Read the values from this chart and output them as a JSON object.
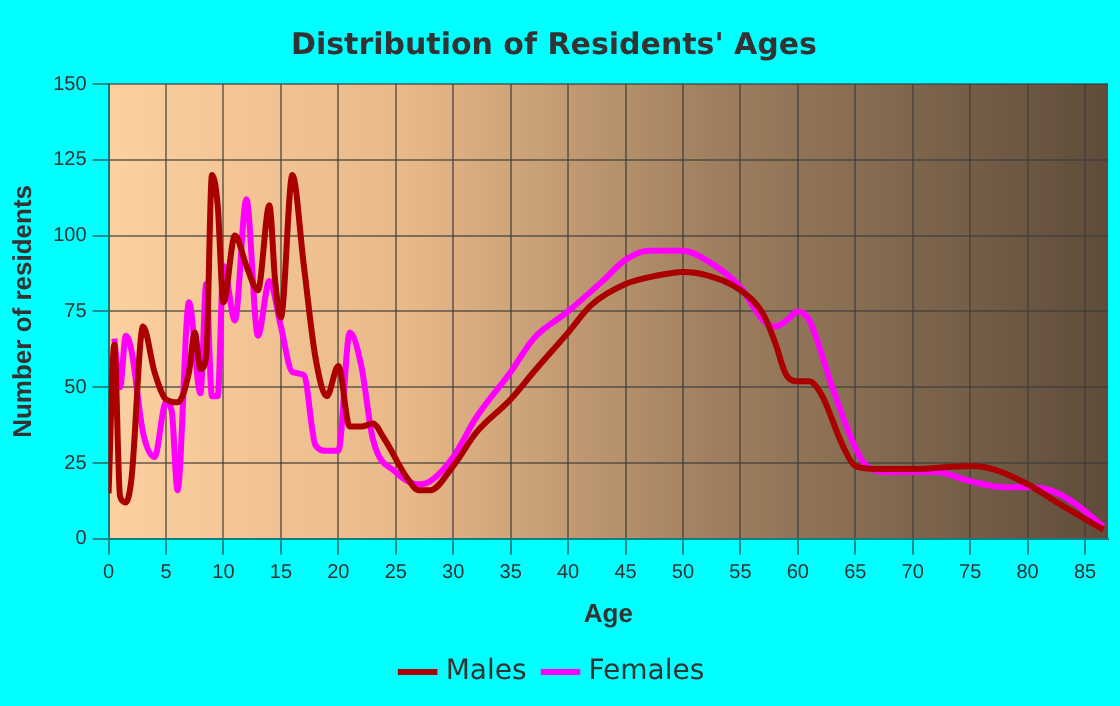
{
  "chart_data": {
    "type": "line",
    "title": "Distribution of Residents' Ages",
    "xlabel": "Age",
    "ylabel": "Number of residents",
    "xlim": [
      0,
      87
    ],
    "xticks": [
      0,
      5,
      10,
      15,
      20,
      25,
      30,
      35,
      40,
      45,
      50,
      55,
      60,
      65,
      70,
      75,
      80,
      85
    ],
    "ylim": [
      0,
      150
    ],
    "yticks": [
      0,
      25,
      50,
      75,
      100,
      125,
      150
    ],
    "grid": true,
    "legend": "bottom",
    "marker": "none",
    "line_style": "solid",
    "series": [
      {
        "name": "Males",
        "color": "#aa0000",
        "x": [
          0,
          0.5,
          1,
          1.5,
          2,
          3,
          4,
          5,
          6,
          7,
          7.5,
          8,
          8.5,
          9,
          9.5,
          10,
          11,
          12,
          13,
          14,
          14.5,
          15,
          16,
          17,
          18,
          19,
          20,
          21,
          22,
          23,
          24,
          26,
          27,
          28,
          30,
          32,
          35,
          37,
          40,
          42,
          45,
          48,
          50,
          52,
          55,
          57,
          58,
          59,
          60,
          61,
          62,
          64,
          65,
          67,
          70,
          75,
          77,
          80,
          83,
          86.6
        ],
        "values": [
          15,
          64,
          14,
          12,
          20,
          70,
          55,
          46,
          45,
          55,
          68,
          56,
          60,
          120,
          110,
          78,
          100,
          90,
          82,
          110,
          85,
          73,
          120,
          90,
          60,
          47,
          57,
          37,
          37,
          38,
          33,
          20,
          16,
          16,
          24,
          35,
          46,
          55,
          68,
          77,
          84,
          87,
          88,
          87,
          82,
          74,
          65,
          54,
          52,
          52,
          48,
          30,
          24,
          23,
          23,
          24,
          23,
          18,
          11,
          3
        ]
      },
      {
        "name": "Females",
        "color": "#ff00ff",
        "x": [
          0.5,
          1,
          1.5,
          2,
          3,
          4,
          5,
          5.5,
          6,
          7,
          8,
          8.5,
          9,
          9.5,
          10,
          11,
          12,
          13,
          14,
          15,
          16,
          17,
          18,
          19,
          20,
          21,
          22,
          23,
          25,
          27,
          28,
          30,
          32,
          35,
          37,
          40,
          43,
          45,
          47,
          50,
          52,
          55,
          57,
          58,
          59,
          60,
          61,
          63,
          65,
          66,
          68,
          72,
          75,
          78,
          80,
          82,
          84,
          86.6
        ],
        "values": [
          66,
          50,
          67,
          62,
          35,
          27,
          45,
          42,
          16,
          78,
          48,
          84,
          47,
          47,
          90,
          72,
          112,
          67,
          85,
          70,
          55,
          54,
          31,
          29,
          29,
          68,
          57,
          33,
          22,
          18,
          19,
          27,
          40,
          55,
          66,
          75,
          85,
          92,
          95,
          95,
          92,
          83,
          72,
          70,
          72,
          75,
          72,
          50,
          30,
          24,
          22,
          22,
          19,
          17,
          17,
          16,
          12,
          4
        ]
      }
    ]
  }
}
